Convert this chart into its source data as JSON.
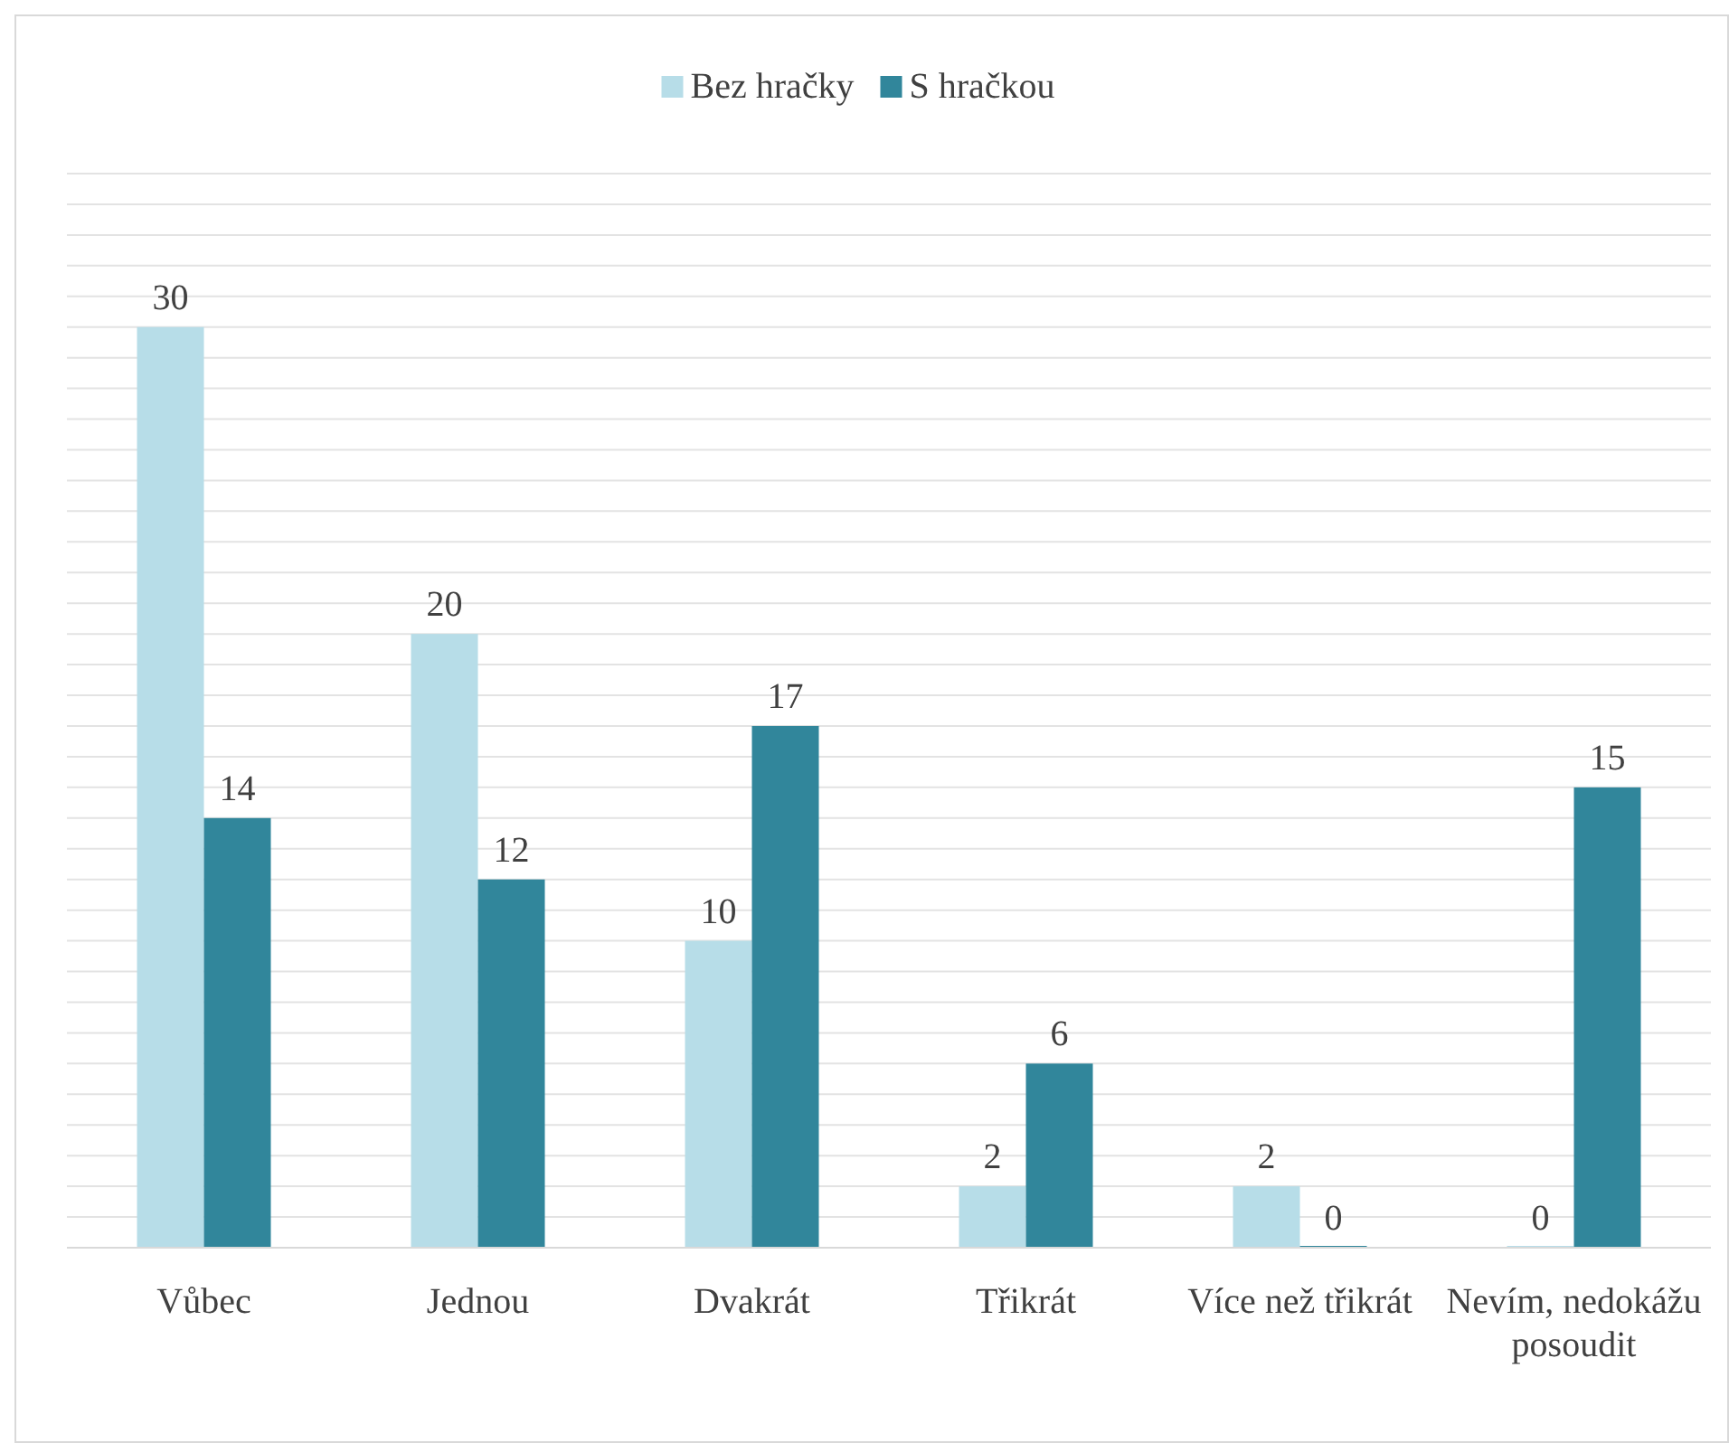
{
  "chart_data": {
    "type": "bar",
    "categories": [
      "Vůbec",
      "Jednou",
      "Dvakrát",
      "Třikrát",
      "Více než třikrát",
      "Nevím, nedokážu posoudit"
    ],
    "series": [
      {
        "name": "Bez hračky",
        "color": "#b7dde8",
        "values": [
          30,
          20,
          10,
          2,
          2,
          0
        ]
      },
      {
        "name": "S hračkou",
        "color": "#31869b",
        "values": [
          14,
          12,
          17,
          6,
          0,
          15
        ]
      }
    ],
    "ylim": [
      0,
      35
    ],
    "yticks": [
      {
        "value": 0,
        "label": null
      },
      {
        "value": 1,
        "label": null
      },
      {
        "value": 2,
        "label": null
      },
      {
        "value": 3,
        "label": null
      },
      {
        "value": 4,
        "label": null
      },
      {
        "value": 5,
        "label": null
      },
      {
        "value": 6,
        "label": null
      },
      {
        "value": 7,
        "label": null
      },
      {
        "value": 8,
        "label": null
      },
      {
        "value": 9,
        "label": null
      },
      {
        "value": 10,
        "label": null
      },
      {
        "value": 11,
        "label": null
      },
      {
        "value": 12,
        "label": null
      },
      {
        "value": 13,
        "label": null
      },
      {
        "value": 14,
        "label": null
      },
      {
        "value": 15,
        "label": null
      },
      {
        "value": 16,
        "label": null
      },
      {
        "value": 17,
        "label": null
      },
      {
        "value": 18,
        "label": null
      },
      {
        "value": 19,
        "label": null
      },
      {
        "value": 20,
        "label": null
      },
      {
        "value": 21,
        "label": null
      },
      {
        "value": 22,
        "label": null
      },
      {
        "value": 23,
        "label": null
      },
      {
        "value": 24,
        "label": null
      },
      {
        "value": 25,
        "label": null
      },
      {
        "value": 26,
        "label": null
      },
      {
        "value": 27,
        "label": null
      },
      {
        "value": 28,
        "label": null
      },
      {
        "value": 29,
        "label": null
      },
      {
        "value": 30,
        "label": null
      },
      {
        "value": 31,
        "label": null
      },
      {
        "value": 32,
        "label": null
      },
      {
        "value": 33,
        "label": null
      },
      {
        "value": 34,
        "label": null
      },
      {
        "value": 35,
        "label": null
      }
    ],
    "tick_labels": "x",
    "grid": "y",
    "legend": "top",
    "data_labels": true
  }
}
